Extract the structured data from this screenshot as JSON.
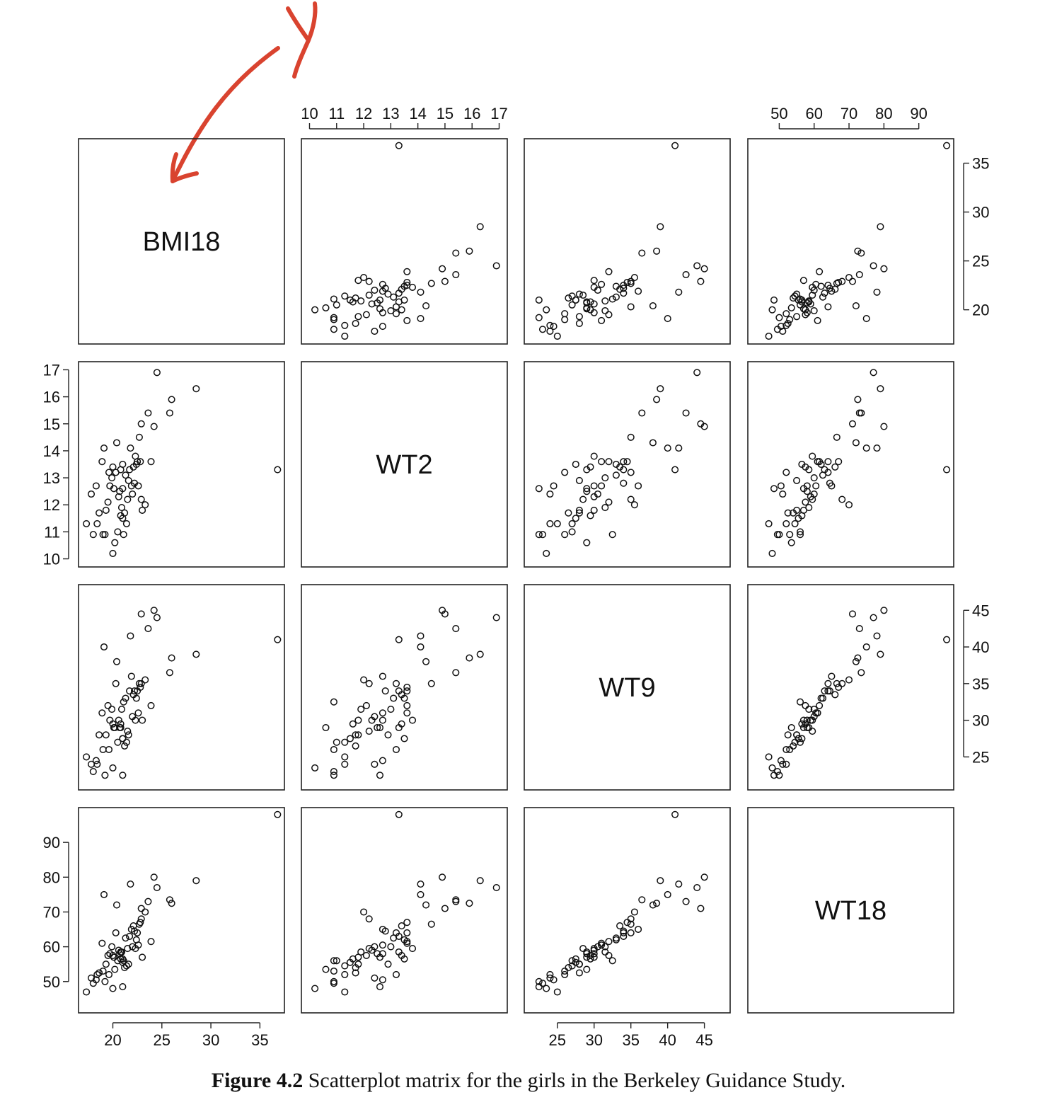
{
  "annotation": {
    "kind": "red hand-drawn arrow",
    "color": "#d9432f"
  },
  "caption": {
    "label": "Figure 4.2",
    "text": " Scatterplot matrix for the girls in the Berkeley Guidance Study."
  },
  "chart_data": {
    "type": "scatter",
    "title": "",
    "variables": [
      "BMI18",
      "WT2",
      "WT9",
      "WT18"
    ],
    "ranges": {
      "BMI18": [
        16.5,
        37.5
      ],
      "WT2": [
        9.7,
        17.3
      ],
      "WT9": [
        20.5,
        48.5
      ],
      "WT18": [
        41,
        100
      ]
    },
    "ticks": {
      "BMI18": [
        20,
        25,
        30,
        35
      ],
      "WT2": [
        10,
        11,
        12,
        13,
        14,
        15,
        16,
        17
      ],
      "WT9": [
        25,
        30,
        35,
        40,
        45
      ],
      "WT18": [
        50,
        60,
        70,
        80,
        90
      ]
    },
    "tick_labels": {
      "BMI18": [
        "20",
        "25",
        "30",
        "35"
      ],
      "WT2": [
        "10",
        "11",
        "12",
        "13",
        "14",
        "15",
        "16",
        "17"
      ],
      "WT9": [
        "25",
        "30",
        "35",
        "40",
        "45"
      ],
      "WT18": [
        "50",
        "60",
        "70",
        "80",
        "90"
      ]
    },
    "axis_placement": {
      "BMI18": [
        "bottom",
        "right"
      ],
      "WT2": [
        "top",
        "left"
      ],
      "WT9": [
        "bottom",
        "right"
      ],
      "WT18": [
        "top",
        "left"
      ]
    },
    "points": {
      "BMI18": [
        18.0,
        18.4,
        17.3,
        19.2,
        20.0,
        19.0,
        20.5,
        21.0,
        21.2,
        20.1,
        19.7,
        18.9,
        22.0,
        21.5,
        20.8,
        22.4,
        21.7,
        20.3,
        19.5,
        20.9,
        22.8,
        21.9,
        23.3,
        22.1,
        20.6,
        19.3,
        21.4,
        22.6,
        23.0,
        20.2,
        21.1,
        22.2,
        18.6,
        20.7,
        19.9,
        21.3,
        22.5,
        20.4,
        19.1,
        21.8,
        24.2,
        23.6,
        22.9,
        25.8,
        26.0,
        28.5,
        24.5,
        22.3,
        20.8,
        21.0,
        18.3,
        19.6,
        21.6,
        23.9,
        22.7,
        20.0,
        17.8,
        36.8,
        21.0,
        22.9
      ],
      "WT2": [
        10.9,
        11.3,
        11.3,
        10.9,
        10.2,
        10.9,
        11.0,
        11.5,
        11.7,
        12.6,
        12.7,
        13.6,
        12.4,
        12.2,
        11.6,
        13.5,
        13.3,
        13.2,
        12.1,
        11.9,
        13.6,
        12.7,
        12.0,
        13.4,
        12.3,
        11.8,
        11.3,
        12.7,
        11.8,
        10.6,
        10.9,
        12.8,
        11.7,
        12.5,
        13.0,
        13.1,
        13.6,
        14.3,
        14.1,
        14.1,
        14.9,
        15.4,
        15.0,
        15.4,
        15.9,
        16.3,
        16.9,
        13.8,
        13.3,
        13.5,
        12.7,
        13.2,
        12.9,
        13.6,
        14.5,
        13.4,
        12.4,
        13.3,
        12.6,
        12.2
      ],
      "WT9": [
        23.0,
        24.0,
        25.0,
        22.5,
        23.5,
        26.0,
        27.0,
        27.5,
        26.5,
        29.0,
        30.0,
        31.0,
        30.5,
        28.5,
        29.5,
        33.0,
        34.0,
        35.0,
        32.0,
        31.5,
        34.5,
        36.0,
        35.5,
        33.5,
        30.0,
        28.0,
        27.0,
        31.0,
        30.0,
        29.0,
        32.5,
        34.0,
        28.0,
        29.0,
        31.5,
        33.0,
        34.0,
        38.0,
        40.0,
        41.5,
        45.0,
        42.5,
        44.5,
        36.5,
        38.5,
        39.0,
        44.0,
        30.0,
        29.0,
        27.5,
        24.5,
        26.0,
        28.0,
        32.0,
        35.0,
        29.5,
        24.0,
        41.0,
        22.5,
        35.0
      ],
      "WT18": [
        49.5,
        52.0,
        47.0,
        50.0,
        48.0,
        53.0,
        56.0,
        55.5,
        54.0,
        57.0,
        58.0,
        61.0,
        60.0,
        59.5,
        56.5,
        62.0,
        63.0,
        64.0,
        57.5,
        58.5,
        67.0,
        65.0,
        70.0,
        66.0,
        59.0,
        55.0,
        54.5,
        60.5,
        57.0,
        53.5,
        56.0,
        64.5,
        52.5,
        58.0,
        60.0,
        62.5,
        64.0,
        72.0,
        75.0,
        78.0,
        80.0,
        73.0,
        71.0,
        73.5,
        72.5,
        79.0,
        77.0,
        59.5,
        58.5,
        56.5,
        50.5,
        52.0,
        55.0,
        61.5,
        66.5,
        57.5,
        51.0,
        98.0,
        48.5,
        68.0
      ]
    }
  }
}
